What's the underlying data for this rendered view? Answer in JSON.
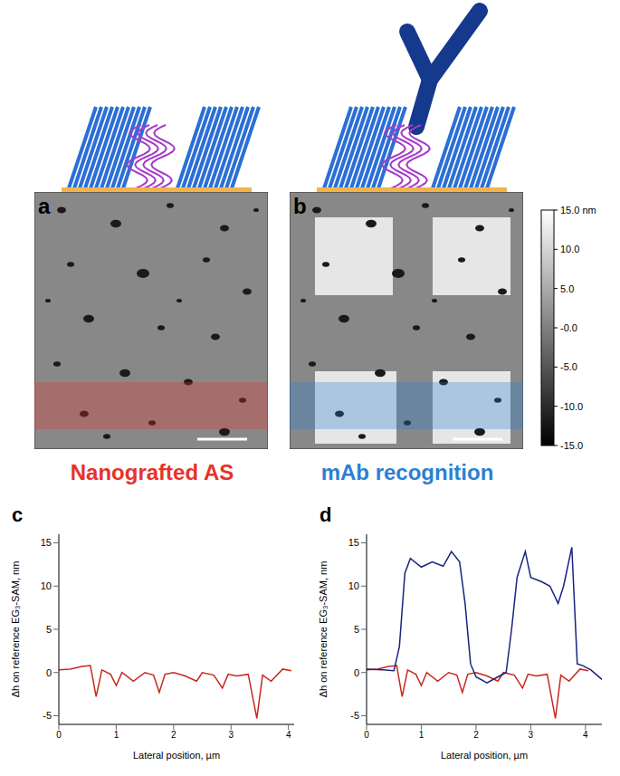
{
  "panels": [
    {
      "label": "a",
      "caption": "Nanografted AS",
      "color": "#e8322b",
      "antibody": false
    },
    {
      "label": "b",
      "caption": "mAb recognition",
      "color": "#2b7fd4",
      "antibody": true
    }
  ],
  "colorbar": {
    "range": [
      -15,
      15
    ],
    "ticks": [
      {
        "value": 15,
        "label": "15.0 nm"
      },
      {
        "value": 10,
        "label": "10.0"
      },
      {
        "value": 5,
        "label": "5.0"
      },
      {
        "value": 0,
        "label": "-0.0"
      },
      {
        "value": -5,
        "label": "-5.0"
      },
      {
        "value": -10,
        "label": "-10.0"
      },
      {
        "value": -15,
        "label": "-15.0"
      }
    ]
  },
  "chart_data": [
    {
      "type": "line",
      "label": "c",
      "xlabel": "Lateral position, µm",
      "ylabel": "Δh on reference EG₃-SAM, nm",
      "xlim": [
        0,
        4.1
      ],
      "ylim": [
        -6,
        16
      ],
      "xticks": [
        0,
        1,
        2,
        3,
        4
      ],
      "yticks": [
        -5,
        0,
        5,
        10,
        15
      ],
      "series": [
        {
          "color": "#c8281e",
          "x": [
            0,
            0.2,
            0.4,
            0.55,
            0.65,
            0.75,
            0.9,
            1.0,
            1.1,
            1.3,
            1.5,
            1.65,
            1.75,
            1.85,
            2.0,
            2.2,
            2.4,
            2.5,
            2.7,
            2.85,
            2.95,
            3.1,
            3.3,
            3.45,
            3.55,
            3.7,
            3.9,
            4.05
          ],
          "values": [
            0.3,
            0.4,
            0.7,
            0.8,
            -2.8,
            0.3,
            -0.2,
            -1.5,
            0,
            -1,
            0,
            -0.3,
            -2.3,
            -0.2,
            0,
            -0.4,
            -1,
            0,
            -0.3,
            -1.8,
            -0.2,
            -0.4,
            -0.2,
            -5.3,
            -0.3,
            -1,
            0.4,
            0.2
          ]
        }
      ]
    },
    {
      "type": "line",
      "label": "d",
      "xlabel": "Lateral position, µm",
      "ylabel": "Δh on reference EG₃-SAM, nm",
      "xlim": [
        0,
        4.3
      ],
      "ylim": [
        -6,
        16
      ],
      "xticks": [
        0,
        1,
        2,
        3,
        4
      ],
      "yticks": [
        -5,
        0,
        5,
        10,
        15
      ],
      "series": [
        {
          "color": "#c8281e",
          "x": [
            0,
            0.2,
            0.4,
            0.55,
            0.65,
            0.75,
            0.9,
            1.0,
            1.1,
            1.3,
            1.5,
            1.65,
            1.75,
            1.85,
            2.0,
            2.2,
            2.4,
            2.5,
            2.7,
            2.85,
            2.95,
            3.1,
            3.3,
            3.45,
            3.55,
            3.7,
            3.9,
            4.05
          ],
          "values": [
            0.3,
            0.4,
            0.7,
            0.8,
            -2.8,
            0.3,
            -0.2,
            -1.5,
            0,
            -1,
            0,
            -0.3,
            -2.3,
            -0.2,
            0,
            -0.4,
            -1,
            0,
            -0.3,
            -1.8,
            -0.2,
            -0.4,
            -0.2,
            -5.3,
            -0.3,
            -1,
            0.4,
            0.2
          ]
        },
        {
          "color": "#1a237e",
          "x": [
            0,
            0.3,
            0.5,
            0.6,
            0.7,
            0.8,
            1.0,
            1.2,
            1.4,
            1.55,
            1.7,
            1.8,
            1.9,
            2.0,
            2.2,
            2.4,
            2.55,
            2.65,
            2.75,
            2.9,
            3.0,
            3.2,
            3.35,
            3.5,
            3.6,
            3.75,
            3.85,
            3.95,
            4.1,
            4.3
          ],
          "values": [
            0.4,
            0.3,
            0.2,
            3,
            11.5,
            13.2,
            12.2,
            12.8,
            12.3,
            14,
            12.8,
            8,
            1,
            -0.5,
            -1.2,
            -0.5,
            0,
            5,
            11,
            14,
            11,
            10.5,
            10,
            8,
            10,
            14.5,
            1,
            0.8,
            0.3,
            -0.8
          ]
        }
      ]
    }
  ]
}
